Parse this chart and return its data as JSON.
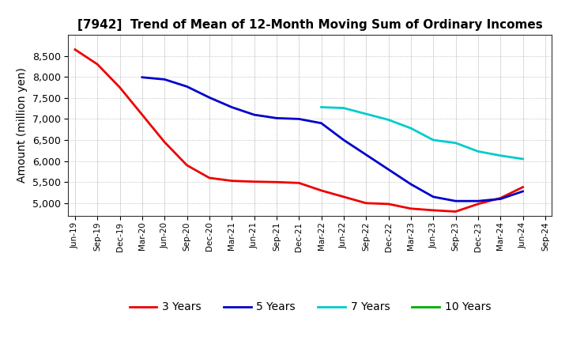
{
  "title": "[7942]  Trend of Mean of 12-Month Moving Sum of Ordinary Incomes",
  "ylabel": "Amount (million yen)",
  "background_color": "#ffffff",
  "grid_color": "#aaaaaa",
  "title_fontsize": 11,
  "ylabel_fontsize": 10,
  "ylim": [
    4700,
    9000
  ],
  "yticks": [
    5000,
    5500,
    6000,
    6500,
    7000,
    7500,
    8000,
    8500
  ],
  "series": {
    "3 Years": {
      "color": "#ee0000",
      "data": {
        "Jun-19": 8650,
        "Sep-19": 8300,
        "Dec-19": 7750,
        "Mar-20": 7100,
        "Jun-20": 6450,
        "Sep-20": 5900,
        "Dec-20": 5600,
        "Mar-21": 5530,
        "Jun-21": 5510,
        "Sep-21": 5500,
        "Dec-21": 5480,
        "Mar-22": 5300,
        "Jun-22": 5150,
        "Sep-22": 5000,
        "Dec-22": 4980,
        "Mar-23": 4870,
        "Jun-23": 4830,
        "Sep-23": 4800,
        "Dec-23": 4980,
        "Mar-24": 5120,
        "Jun-24": 5380
      }
    },
    "5 Years": {
      "color": "#0000cc",
      "data": {
        "Mar-20": 7990,
        "Jun-20": 7940,
        "Sep-20": 7770,
        "Dec-20": 7510,
        "Mar-21": 7280,
        "Jun-21": 7100,
        "Sep-21": 7020,
        "Dec-21": 7000,
        "Mar-22": 6900,
        "Jun-22": 6500,
        "Sep-22": 6150,
        "Dec-22": 5800,
        "Mar-23": 5450,
        "Jun-23": 5150,
        "Sep-23": 5050,
        "Dec-23": 5050,
        "Mar-24": 5100,
        "Jun-24": 5280
      }
    },
    "7 Years": {
      "color": "#00cccc",
      "data": {
        "Mar-22": 7280,
        "Jun-22": 7260,
        "Sep-22": 7120,
        "Dec-22": 6980,
        "Mar-23": 6780,
        "Jun-23": 6500,
        "Sep-23": 6430,
        "Dec-23": 6230,
        "Mar-24": 6130,
        "Jun-24": 6050
      }
    },
    "10 Years": {
      "color": "#00aa00",
      "data": {}
    }
  },
  "x_labels": [
    "Jun-19",
    "Sep-19",
    "Dec-19",
    "Mar-20",
    "Jun-20",
    "Sep-20",
    "Dec-20",
    "Mar-21",
    "Jun-21",
    "Sep-21",
    "Dec-21",
    "Mar-22",
    "Jun-22",
    "Sep-22",
    "Dec-22",
    "Mar-23",
    "Jun-23",
    "Sep-23",
    "Dec-23",
    "Mar-24",
    "Jun-24",
    "Sep-24"
  ]
}
